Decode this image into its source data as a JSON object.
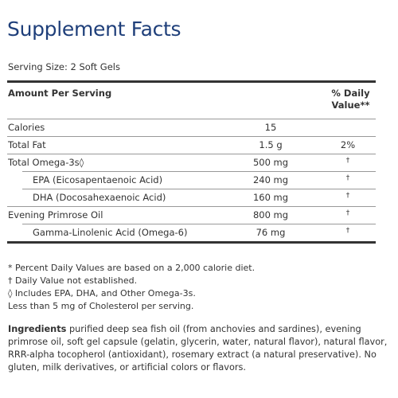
{
  "header": {
    "title": "Supplement Facts",
    "serving_size": "Serving Size: 2 Soft Gels"
  },
  "table": {
    "columns": [
      "Amount Per Serving",
      "% Daily Value**"
    ],
    "rows": [
      {
        "name": "Calories",
        "amount": "15"
      },
      {
        "name": "Total Fat",
        "amount": "1.5 g",
        "dv": "2%"
      },
      {
        "name": "Total Omega-3s◊",
        "amount": "500 mg",
        "dv": "†",
        "subrows": [
          {
            "name": "EPA (Eicosapentaenoic Acid)",
            "amount": "240 mg",
            "dv": "†"
          },
          {
            "name": "DHA (Docosahexaenoic Acid)",
            "amount": "160 mg",
            "dv": "†"
          }
        ]
      },
      {
        "name": "Evening Primrose Oil",
        "amount": "800 mg",
        "dv": "†",
        "subrows": [
          {
            "name": "Gamma-Linolenic Acid (Omega-6)",
            "amount": "76 mg",
            "dv": "†"
          }
        ]
      }
    ]
  },
  "footnotes": [
    "* Percent Daily Values are based on a 2,000 calorie diet.",
    "† Daily Value not established.",
    "◊ Includes EPA, DHA, and Other Omega-3s.",
    "Less than 5 mg of Cholesterol per serving."
  ],
  "ingredients": {
    "label": "Ingredients",
    "text": "purified deep sea fish oil (from anchovies and sardines), evening primrose oil, soft gel capsule (gelatin, glycerin, water, natural flavor), natural flavor, RRR-alpha tocopherol (antioxidant), rosemary extract (a natural preservative). No gluten, milk derivatives, or artificial colors or flavors."
  }
}
